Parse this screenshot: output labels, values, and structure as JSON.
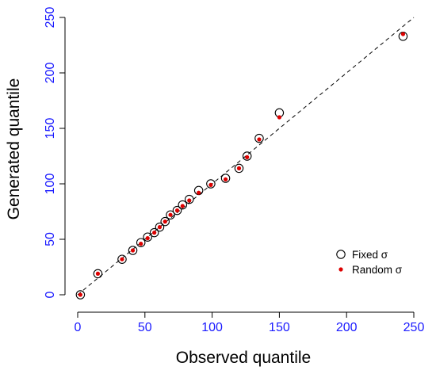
{
  "chart_data": {
    "type": "scatter",
    "xlabel": "Observed quantile",
    "ylabel": "Generated quantile",
    "xlim": [
      0,
      250
    ],
    "ylim": [
      0,
      250
    ],
    "x_ticks": [
      0,
      50,
      100,
      150,
      200,
      250
    ],
    "y_ticks": [
      0,
      50,
      100,
      150,
      200,
      250
    ],
    "x_tick_labels": [
      "0",
      "50",
      "100",
      "150",
      "200",
      "250"
    ],
    "y_tick_labels": [
      "0",
      "50",
      "100",
      "150",
      "200",
      "250"
    ],
    "grid": false,
    "legend": {
      "placement": "bottom-right"
    },
    "reference_line": {
      "style": "dashed",
      "from": [
        0,
        0
      ],
      "to": [
        250,
        250
      ]
    },
    "series": [
      {
        "name": "Fixed σ",
        "marker": "open-circle",
        "color": "#000000",
        "points": [
          [
            2,
            0
          ],
          [
            15,
            19
          ],
          [
            33,
            32
          ],
          [
            41,
            40
          ],
          [
            47,
            47
          ],
          [
            52,
            52
          ],
          [
            57,
            56
          ],
          [
            61,
            61
          ],
          [
            65,
            66
          ],
          [
            69,
            72
          ],
          [
            74,
            76
          ],
          [
            78,
            81
          ],
          [
            83,
            86
          ],
          [
            90,
            94
          ],
          [
            99,
            100
          ],
          [
            110,
            105
          ],
          [
            120,
            114
          ],
          [
            126,
            125
          ],
          [
            135,
            141
          ],
          [
            150,
            164
          ],
          [
            242,
            233
          ]
        ]
      },
      {
        "name": "Random σ",
        "marker": "filled-dot",
        "color": "#dd0000",
        "points": [
          [
            2,
            0
          ],
          [
            15,
            19
          ],
          [
            33,
            32
          ],
          [
            41,
            40
          ],
          [
            47,
            46
          ],
          [
            52,
            51
          ],
          [
            57,
            56
          ],
          [
            61,
            61
          ],
          [
            65,
            66
          ],
          [
            69,
            72
          ],
          [
            74,
            76
          ],
          [
            78,
            80
          ],
          [
            83,
            85
          ],
          [
            90,
            92
          ],
          [
            99,
            99
          ],
          [
            110,
            104
          ],
          [
            120,
            114
          ],
          [
            126,
            124
          ],
          [
            135,
            140
          ],
          [
            150,
            160
          ],
          [
            242,
            235
          ]
        ]
      }
    ]
  }
}
